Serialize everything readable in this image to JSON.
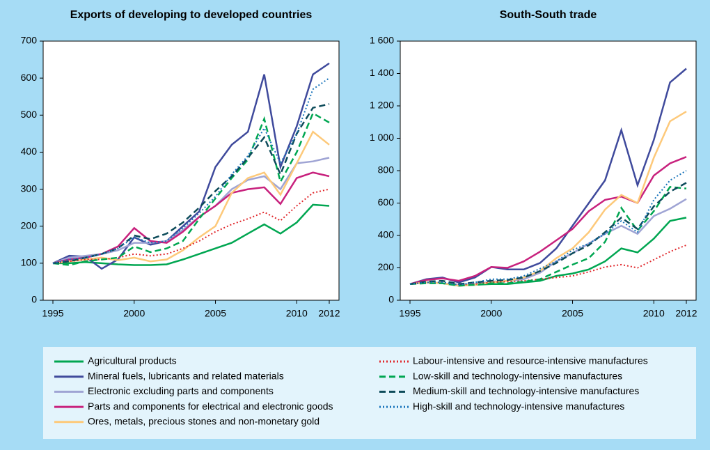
{
  "chart_data": [
    {
      "type": "line",
      "title": "Exports of developing to developed countries",
      "x": [
        1995,
        1996,
        1997,
        1998,
        1999,
        2000,
        2001,
        2002,
        2003,
        2004,
        2005,
        2006,
        2007,
        2008,
        2009,
        2010,
        2011,
        2012
      ],
      "xlim": [
        1994.4,
        2012.6
      ],
      "xticks": [
        1995,
        2000,
        2005,
        2010,
        2012
      ],
      "ylim": [
        0,
        700
      ],
      "yticks": [
        0,
        100,
        200,
        300,
        400,
        500,
        600,
        700
      ],
      "series": [
        {
          "name": "Agricultural products",
          "color": "#00a651",
          "style": "solid",
          "values": [
            100,
            100,
            103,
            100,
            97,
            95,
            95,
            97,
            110,
            125,
            140,
            155,
            180,
            205,
            180,
            210,
            258,
            255
          ]
        },
        {
          "name": "Mineral fuels, lubricants and related materials",
          "color": "#3f4a9c",
          "style": "solid",
          "values": [
            100,
            120,
            118,
            85,
            110,
            170,
            150,
            160,
            200,
            240,
            360,
            420,
            455,
            610,
            360,
            470,
            610,
            640
          ]
        },
        {
          "name": "Electronic excluding parts and components",
          "color": "#9fa4d4",
          "style": "solid",
          "values": [
            100,
            115,
            120,
            125,
            135,
            155,
            155,
            160,
            190,
            225,
            255,
            300,
            325,
            335,
            300,
            370,
            375,
            385
          ]
        },
        {
          "name": "Parts and components for electrical and electronic goods",
          "color": "#c8217d",
          "style": "solid",
          "values": [
            100,
            110,
            115,
            125,
            145,
            195,
            160,
            155,
            185,
            225,
            255,
            290,
            300,
            305,
            260,
            330,
            345,
            335
          ]
        },
        {
          "name": "Ores, metals, precious stones and non-monetary gold",
          "color": "#fdc97a",
          "style": "solid",
          "values": [
            100,
            105,
            110,
            115,
            108,
            115,
            105,
            110,
            135,
            170,
            200,
            290,
            330,
            345,
            285,
            370,
            455,
            420
          ]
        },
        {
          "name": "Labour-intensive and resource-intensive manufactures",
          "color": "#e0272b",
          "style": "dotted",
          "values": [
            100,
            105,
            110,
            110,
            115,
            125,
            120,
            125,
            140,
            160,
            185,
            205,
            220,
            238,
            215,
            255,
            290,
            300
          ]
        },
        {
          "name": "Low-skill and technology-intensive manufactures",
          "color": "#00a651",
          "style": "dashed",
          "values": [
            100,
            95,
            105,
            110,
            115,
            145,
            130,
            140,
            160,
            220,
            275,
            330,
            380,
            490,
            320,
            400,
            505,
            480
          ]
        },
        {
          "name": "Medium-skill and technology-intensive manufactures",
          "color": "#0d4b5a",
          "style": "dashed",
          "values": [
            100,
            105,
            115,
            125,
            140,
            175,
            165,
            180,
            210,
            250,
            295,
            335,
            385,
            440,
            340,
            450,
            520,
            530
          ]
        },
        {
          "name": "High-skill and technology-intensive manufactures",
          "color": "#1a75bb",
          "style": "dotted",
          "values": [
            100,
            110,
            115,
            125,
            140,
            170,
            155,
            160,
            195,
            235,
            280,
            340,
            390,
            465,
            370,
            450,
            570,
            600
          ]
        }
      ]
    },
    {
      "type": "line",
      "title": "South-South trade",
      "x": [
        1995,
        1996,
        1997,
        1998,
        1999,
        2000,
        2001,
        2002,
        2003,
        2004,
        2005,
        2006,
        2007,
        2008,
        2009,
        2010,
        2011,
        2012
      ],
      "xlim": [
        1994.4,
        2012.6
      ],
      "xticks": [
        1995,
        2000,
        2005,
        2010,
        2012
      ],
      "ylim": [
        0,
        1600
      ],
      "yticks": [
        0,
        200,
        400,
        600,
        800,
        {
          "value": 1000,
          "label": "1 000"
        },
        {
          "value": 1200,
          "label": "1 200"
        },
        {
          "value": 1400,
          "label": "1 400"
        },
        {
          "value": 1600,
          "label": "1 600"
        }
      ],
      "series": [
        {
          "name": "Agricultural products",
          "color": "#00a651",
          "style": "solid",
          "values": [
            100,
            110,
            105,
            90,
            95,
            100,
            100,
            110,
            120,
            150,
            165,
            190,
            240,
            320,
            295,
            380,
            490,
            510
          ]
        },
        {
          "name": "Mineral fuels, lubricants and related materials",
          "color": "#3f4a9c",
          "style": "solid",
          "values": [
            100,
            130,
            140,
            110,
            140,
            205,
            190,
            190,
            230,
            320,
            460,
            600,
            740,
            1050,
            710,
            990,
            1345,
            1430
          ]
        },
        {
          "name": "Electronic excluding parts and components",
          "color": "#9fa4d4",
          "style": "solid",
          "values": [
            100,
            110,
            105,
            95,
            100,
            115,
            120,
            130,
            170,
            240,
            290,
            350,
            410,
            460,
            410,
            520,
            565,
            625
          ]
        },
        {
          "name": "Parts and components for electrical and electronic goods",
          "color": "#c8217d",
          "style": "solid",
          "values": [
            100,
            125,
            135,
            120,
            150,
            205,
            200,
            240,
            300,
            370,
            440,
            550,
            620,
            640,
            600,
            770,
            845,
            885
          ]
        },
        {
          "name": "Ores, metals, precious stones and non-monetary gold",
          "color": "#fdc97a",
          "style": "solid",
          "values": [
            100,
            110,
            105,
            90,
            95,
            110,
            120,
            140,
            180,
            260,
            320,
            420,
            560,
            650,
            600,
            880,
            1105,
            1165
          ]
        },
        {
          "name": "Labour-intensive and resource-intensive manufactures",
          "color": "#e0272b",
          "style": "dotted",
          "values": [
            100,
            110,
            110,
            95,
            100,
            110,
            115,
            120,
            130,
            140,
            150,
            175,
            205,
            220,
            200,
            250,
            300,
            340
          ]
        },
        {
          "name": "Low-skill and technology-intensive manufactures",
          "color": "#00a651",
          "style": "dashed",
          "values": [
            100,
            105,
            105,
            90,
            95,
            105,
            105,
            115,
            130,
            175,
            220,
            260,
            360,
            570,
            430,
            550,
            700,
            690
          ]
        },
        {
          "name": "Medium-skill and technology-intensive manufactures",
          "color": "#0d4b5a",
          "style": "dashed",
          "values": [
            100,
            115,
            120,
            100,
            110,
            120,
            125,
            140,
            180,
            230,
            290,
            340,
            420,
            510,
            440,
            580,
            670,
            725
          ]
        },
        {
          "name": "High-skill and technology-intensive manufactures",
          "color": "#1a75bb",
          "style": "dotted",
          "values": [
            100,
            110,
            110,
            95,
            110,
            130,
            130,
            150,
            195,
            240,
            310,
            350,
            410,
            490,
            420,
            620,
            740,
            800
          ]
        }
      ]
    }
  ]
}
